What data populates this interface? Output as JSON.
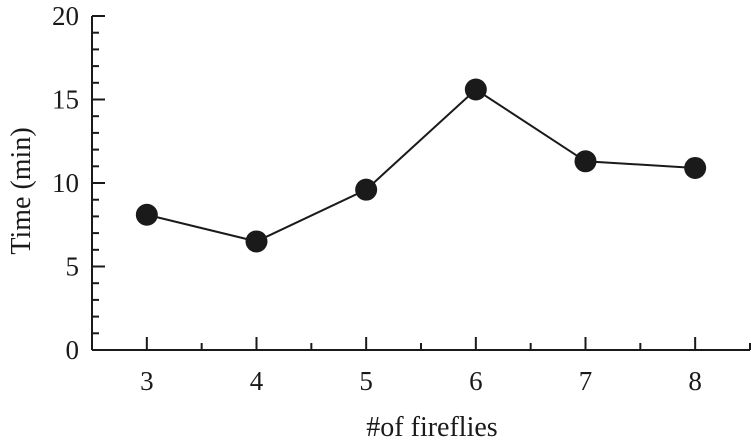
{
  "chart_data": {
    "type": "line",
    "title": "",
    "xlabel": "#of fireflies",
    "ylabel": "Time (min)",
    "x": [
      3,
      4,
      5,
      6,
      7,
      8
    ],
    "series": [
      {
        "values": [
          8.1,
          6.5,
          9.6,
          15.6,
          11.3,
          10.9
        ]
      }
    ],
    "xlim": [
      2.5,
      8.5
    ],
    "ylim": [
      0,
      20
    ],
    "xticks": [
      3,
      4,
      5,
      6,
      7,
      8
    ],
    "yticks": [
      0,
      5,
      10,
      15,
      20
    ],
    "ytick_labels": [
      "0",
      "5",
      "10",
      "15",
      "20"
    ],
    "xtick_labels": [
      "3",
      "4",
      "5",
      "6",
      "7",
      "8"
    ],
    "grid": false,
    "legend": "none",
    "line_color": "#1a1a1a",
    "marker_color": "#1a1a1a"
  }
}
